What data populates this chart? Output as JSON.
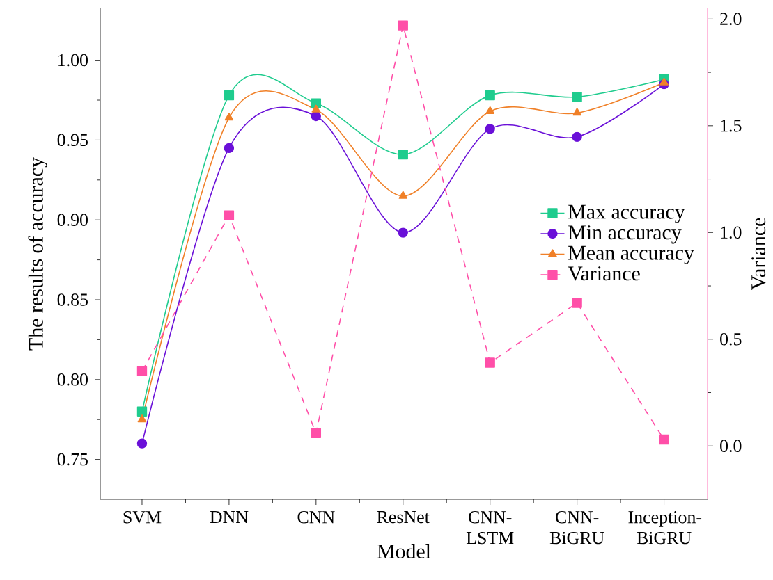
{
  "chart_data": {
    "type": "line",
    "categories": [
      "SVM",
      "DNN",
      "CNN",
      "ResNet",
      "CNN-LSTM",
      "CNN-BiGRU",
      "Inception-BiGRU"
    ],
    "xlabel": "Model",
    "ylabel": "The results of accuracy",
    "y2label": "Variance",
    "ylim": [
      0.725,
      1.0325
    ],
    "yticks": [
      {
        "value": 0.75,
        "label": "0.75"
      },
      {
        "value": 0.8,
        "label": "0.80"
      },
      {
        "value": 0.85,
        "label": "0.85"
      },
      {
        "value": 0.9,
        "label": "0.90"
      },
      {
        "value": 0.95,
        "label": "0.95"
      },
      {
        "value": 1.0,
        "label": "1.00"
      }
    ],
    "y2lim": [
      -0.25,
      2.05
    ],
    "y2ticks": [
      {
        "value": 0,
        "label": "0.0"
      },
      {
        "value": 0.5,
        "label": "0.5"
      },
      {
        "value": 1.0,
        "label": "1.0"
      },
      {
        "value": 1.5,
        "label": "1.5"
      },
      {
        "value": 2.0,
        "label": "2.0"
      }
    ],
    "legend": "right",
    "series": [
      {
        "name": "Max accuracy",
        "color": "#1fcc8e",
        "marker": "square",
        "line_style": "solid",
        "values": [
          0.78,
          0.978,
          0.973,
          0.941,
          0.978,
          0.977,
          0.988
        ]
      },
      {
        "name": "Min accuracy",
        "color": "#6a10d8",
        "marker": "circle",
        "line_style": "solid",
        "values": [
          0.76,
          0.945,
          0.965,
          0.892,
          0.957,
          0.952,
          0.985
        ]
      },
      {
        "name": "Mean accuracy",
        "color": "#f08028",
        "marker": "triangle",
        "line_style": "solid",
        "values": [
          0.775,
          0.964,
          0.969,
          0.915,
          0.968,
          0.967,
          0.986
        ]
      },
      {
        "name": "Variance",
        "color": "#ff4fa8",
        "marker": "square",
        "line_style": "dashed",
        "axis": "y2",
        "values": [
          0.35,
          1.08,
          0.06,
          1.97,
          0.39,
          0.67,
          0.03
        ]
      }
    ]
  }
}
